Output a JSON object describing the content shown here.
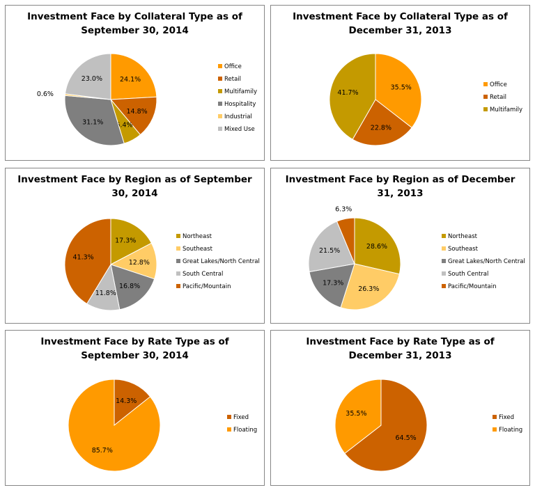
{
  "colors": {
    "office": "#FF9A00",
    "retail": "#CC6200",
    "multifamily": "#C49A00",
    "hospitality": "#7F7F7F",
    "industrial": "#FFCC66",
    "mixed_use": "#C0C0C0",
    "northeast": "#C49A00",
    "southeast": "#FFCC66",
    "great_lakes": "#7F7F7F",
    "south_central": "#C0C0C0",
    "pacific": "#CC6200",
    "fixed": "#CC6200",
    "floating": "#FF9A00"
  },
  "chart_data": [
    {
      "type": "pie",
      "title": "Investment Face by Collateral Type as of September 30, 2014",
      "title_lines": [
        "Investment Face by Collateral Type as of",
        "September 30, 2014"
      ],
      "categories": [
        "Office",
        "Retail",
        "Multifamily",
        "Hospitality",
        "Industrial",
        "Mixed Use"
      ],
      "values": [
        24.1,
        14.8,
        6.4,
        31.1,
        0.6,
        23.0
      ],
      "labels": [
        "24.1%",
        "14.8%",
        "6.4%",
        "31.1%",
        "0.6%",
        "23.0%"
      ],
      "color_keys": [
        "office",
        "retail",
        "multifamily",
        "hospitality",
        "industrial",
        "mixed_use"
      ],
      "legend_position": "right"
    },
    {
      "type": "pie",
      "title": "Investment Face by Collateral Type as of December 31, 2013",
      "title_lines": [
        "Investment Face by Collateral Type as of",
        "December 31, 2013"
      ],
      "categories": [
        "Office",
        "Retail",
        "Multifamily"
      ],
      "values": [
        35.5,
        22.8,
        41.7
      ],
      "labels": [
        "35.5%",
        "22.8%",
        "41.7%"
      ],
      "color_keys": [
        "office",
        "retail",
        "multifamily"
      ],
      "legend_position": "right"
    },
    {
      "type": "pie",
      "title": "Investment Face by Region as of September 30, 2014",
      "title_lines": [
        "Investment Face by Region as of September",
        "30, 2014"
      ],
      "categories": [
        "Northeast",
        "Southeast",
        "Great Lakes/North Central",
        "South Central",
        "Pacific/Mountain"
      ],
      "values": [
        17.3,
        12.8,
        16.8,
        11.8,
        41.3
      ],
      "labels": [
        "17.3%",
        "12.8%",
        "16.8%",
        "11.8%",
        "41.3%"
      ],
      "color_keys": [
        "northeast",
        "southeast",
        "great_lakes",
        "south_central",
        "pacific"
      ],
      "legend_position": "right"
    },
    {
      "type": "pie",
      "title": "Investment Face by Region as of December 31, 2013",
      "title_lines": [
        "Investment Face by Region as of December",
        "31, 2013"
      ],
      "categories": [
        "Northeast",
        "Southeast",
        "Great Lakes/North Central",
        "South Central",
        "Pacific/Mountain"
      ],
      "values": [
        28.6,
        26.3,
        17.3,
        21.5,
        6.3
      ],
      "labels": [
        "28.6%",
        "26.3%",
        "17.3%",
        "21.5%",
        "6.3%"
      ],
      "color_keys": [
        "northeast",
        "southeast",
        "great_lakes",
        "south_central",
        "pacific"
      ],
      "legend_position": "right"
    },
    {
      "type": "pie",
      "title": "Investment Face by Rate Type as of September 30, 2014",
      "title_lines": [
        "Investment Face by Rate Type as of",
        "September 30, 2014"
      ],
      "categories": [
        "Fixed",
        "Floating"
      ],
      "values": [
        14.3,
        85.7
      ],
      "labels": [
        "14.3%",
        "85.7%"
      ],
      "color_keys": [
        "fixed",
        "floating"
      ],
      "legend_position": "right"
    },
    {
      "type": "pie",
      "title": "Investment Face by Rate Type as of December 31, 2013",
      "title_lines": [
        "Investment Face by Rate Type as of",
        "December 31, 2013"
      ],
      "categories": [
        "Fixed",
        "Floating"
      ],
      "values": [
        64.5,
        35.5
      ],
      "labels": [
        "64.5%",
        "35.5%"
      ],
      "color_keys": [
        "fixed",
        "floating"
      ],
      "legend_position": "right"
    }
  ]
}
